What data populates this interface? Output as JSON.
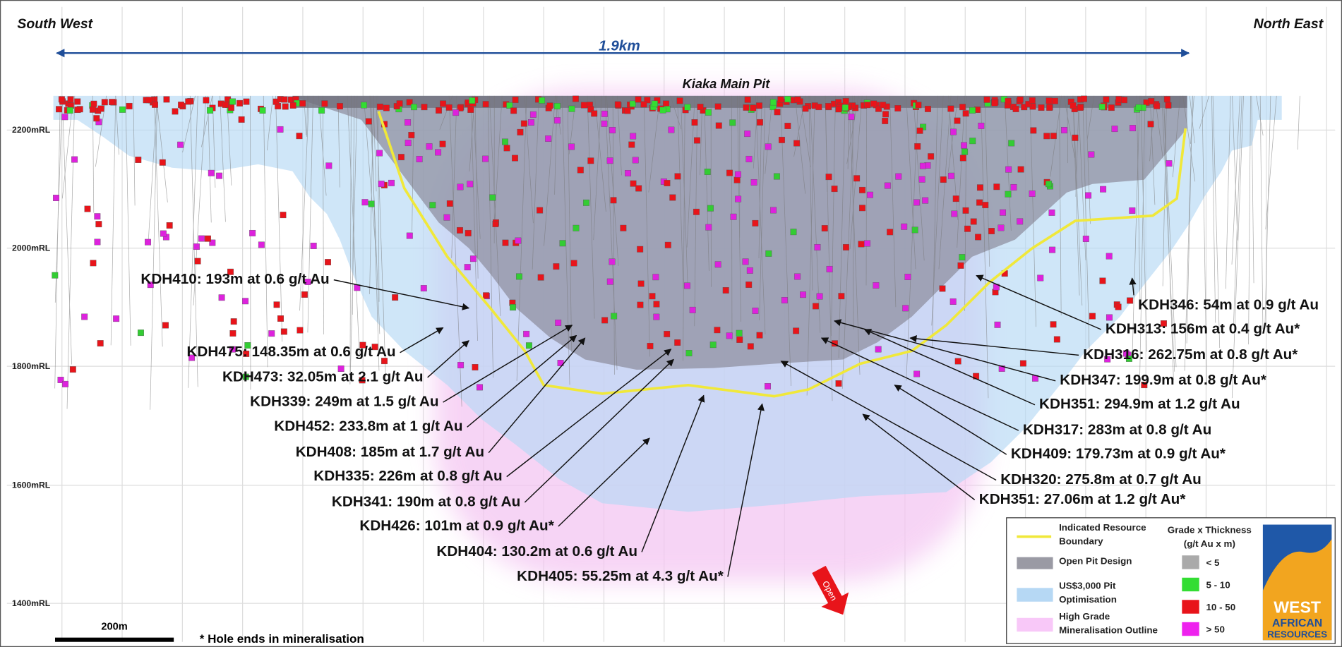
{
  "header": {
    "left": "South West",
    "right": "North East"
  },
  "span_label": "1.9km",
  "pit_label": "Kiaka Main Pit",
  "elevations": [
    "2200mRL",
    "2000mRL",
    "1800mRL",
    "1600mRL",
    "1400mRL"
  ],
  "annotations": {
    "left": [
      "KDH410: 193m at 0.6 g/t Au",
      "KDH475: 148.35m at 0.6 g/t Au",
      "KDH473: 32.05m at 2.1 g/t Au",
      "KDH339: 249m at 1.5 g/t Au",
      "KDH452: 233.8m at 1 g/t Au",
      "KDH408: 185m at 1.7 g/t Au",
      "KDH335: 226m at 0.8 g/t Au",
      "KDH341: 190m at 0.8 g/t Au",
      "KDH426: 101m at 0.9 g/t Au*",
      "KDH404: 130.2m at 0.6 g/t Au",
      "KDH405: 55.25m at 4.3 g/t Au*"
    ],
    "right": [
      "KDH346: 54m at 0.9 g/t Au",
      "KDH313: 156m at 0.4 g/t Au*",
      "KDH316: 262.75m at 0.8 g/t Au*",
      "KDH347: 199.9m at 0.8 g/t Au*",
      "KDH351: 294.9m at 1.2 g/t Au",
      "KDH317: 283m at 0.8 g/t Au",
      "KDH409: 179.73m at 0.9 g/t Au*",
      "KDH320: 275.8m at 0.7 g/t Au",
      "KDH351: 27.06m at 1.2 g/t Au*"
    ]
  },
  "scale_bar": "200m",
  "footnote": "* Hole ends in mineralisation",
  "open_label": "Open",
  "legend": {
    "items": [
      [
        "Indicated Resource",
        "Boundary"
      ],
      [
        "Open Pit Design"
      ],
      [
        "US$3,000 Pit",
        "Optimisation"
      ],
      [
        "High Grade",
        "Mineralisation Outline"
      ]
    ],
    "grade_title": "Grade x Thickness",
    "grade_unit": "(g/t Au x m)",
    "grades": [
      "< 5",
      "5 - 10",
      "10 - 50",
      "> 50"
    ]
  },
  "logo": [
    "WEST",
    "AFRICAN",
    "RESOURCES"
  ]
}
